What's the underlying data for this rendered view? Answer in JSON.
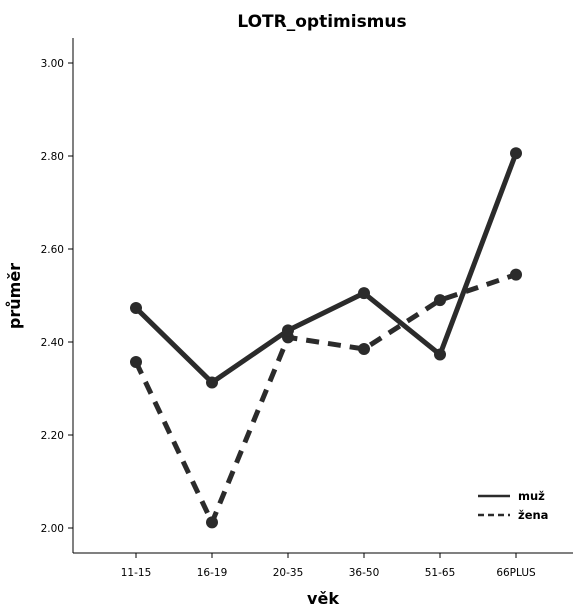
{
  "chart_data": {
    "type": "line",
    "title": "LOTR_optimismus",
    "xlabel": "věk",
    "ylabel": "průměr",
    "categories": [
      "11-15",
      "16-19",
      "20-35",
      "36-50",
      "51-65",
      "66PLUS"
    ],
    "ylim": [
      1.97,
      3.05
    ],
    "yticks": [
      2.0,
      2.2,
      2.4,
      2.6,
      2.8,
      3.0
    ],
    "ytick_labels": [
      "2.00",
      "2.20",
      "2.40",
      "2.60",
      "2.80",
      "3.00"
    ],
    "grid": false,
    "legend_position": "bottom-right",
    "series": [
      {
        "name": "muž",
        "values": [
          2.473,
          2.313,
          2.425,
          2.505,
          2.373,
          2.806
        ],
        "line_style": "solid",
        "color": "#2b2b2b"
      },
      {
        "name": "žena",
        "values": [
          2.357,
          2.012,
          2.41,
          2.385,
          2.49,
          2.545
        ],
        "line_style": "dashed",
        "color": "#2b2b2b"
      }
    ]
  }
}
